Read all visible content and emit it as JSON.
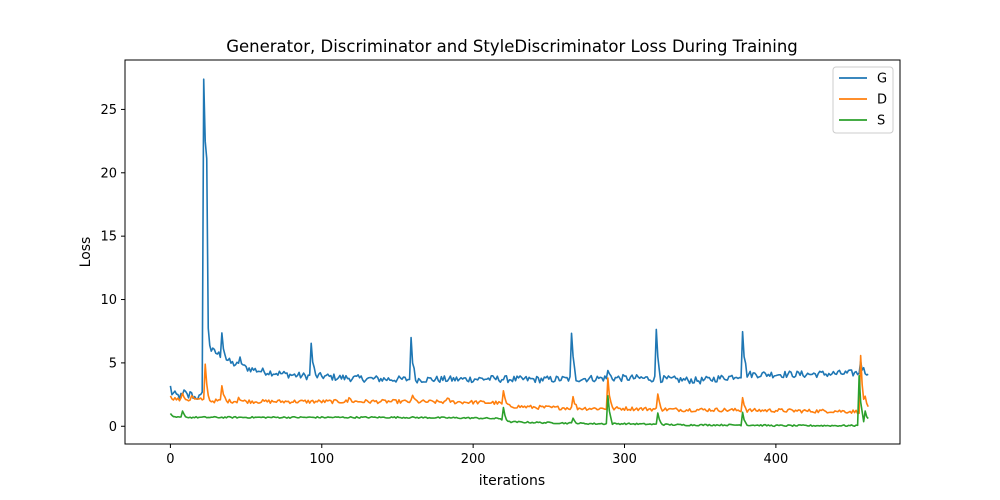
{
  "chart_data": {
    "type": "line",
    "title": "Generator, Discriminator and StyleDiscriminator Loss During Training",
    "xlabel": "iterations",
    "ylabel": "Loss",
    "xlim": [
      -30,
      482
    ],
    "ylim": [
      -1.4,
      28.9
    ],
    "xticks": [
      0,
      100,
      200,
      300,
      400
    ],
    "yticks": [
      0,
      5,
      10,
      15,
      20,
      25
    ],
    "grid": false,
    "legend_position": "top-right",
    "length": 462,
    "series": [
      {
        "name": "G",
        "color": "#1f77b4",
        "base": [
          [
            0,
            3.1
          ],
          [
            1,
            2.6
          ],
          [
            5,
            2.4
          ],
          [
            10,
            2.35
          ],
          [
            15,
            2.3
          ],
          [
            20,
            2.3
          ],
          [
            21,
            2.5
          ],
          [
            22,
            27.6
          ],
          [
            23,
            22.5
          ],
          [
            24,
            21.0
          ],
          [
            25,
            7.8
          ],
          [
            26,
            6.5
          ],
          [
            27,
            6.0
          ],
          [
            30,
            5.8
          ],
          [
            35,
            5.5
          ],
          [
            40,
            5.0
          ],
          [
            50,
            4.6
          ],
          [
            60,
            4.35
          ],
          [
            70,
            4.2
          ],
          [
            80,
            4.05
          ],
          [
            90,
            3.95
          ],
          [
            100,
            3.95
          ],
          [
            110,
            3.85
          ],
          [
            120,
            3.8
          ],
          [
            130,
            3.75
          ],
          [
            150,
            3.7
          ],
          [
            170,
            3.7
          ],
          [
            190,
            3.7
          ],
          [
            210,
            3.75
          ],
          [
            230,
            3.7
          ],
          [
            250,
            3.7
          ],
          [
            270,
            3.75
          ],
          [
            290,
            3.8
          ],
          [
            310,
            3.8
          ],
          [
            330,
            3.7
          ],
          [
            350,
            3.6
          ],
          [
            370,
            3.9
          ],
          [
            380,
            4.1
          ],
          [
            400,
            4.1
          ],
          [
            420,
            4.1
          ],
          [
            440,
            4.15
          ],
          [
            455,
            4.2
          ],
          [
            461,
            4.3
          ]
        ],
        "spikes": [
          [
            9,
            0.5
          ],
          [
            13,
            0.4
          ],
          [
            34,
            1.8
          ],
          [
            46,
            0.7
          ],
          [
            93,
            2.6
          ],
          [
            159,
            3.3
          ],
          [
            265,
            3.6
          ],
          [
            289,
            0.6
          ],
          [
            321,
            3.9
          ],
          [
            378,
            3.4
          ],
          [
            456,
            0.9
          ]
        ]
      },
      {
        "name": "D",
        "color": "#ff7f0e",
        "base": [
          [
            0,
            2.3
          ],
          [
            5,
            2.1
          ],
          [
            10,
            2.1
          ],
          [
            20,
            2.1
          ],
          [
            21,
            2.0
          ],
          [
            22,
            2.2
          ],
          [
            24,
            2.0
          ],
          [
            30,
            2.0
          ],
          [
            60,
            1.95
          ],
          [
            100,
            1.95
          ],
          [
            150,
            1.95
          ],
          [
            200,
            1.9
          ],
          [
            215,
            1.85
          ],
          [
            218,
            1.8
          ],
          [
            222,
            1.6
          ],
          [
            240,
            1.5
          ],
          [
            260,
            1.45
          ],
          [
            280,
            1.4
          ],
          [
            300,
            1.4
          ],
          [
            320,
            1.35
          ],
          [
            340,
            1.3
          ],
          [
            360,
            1.3
          ],
          [
            380,
            1.25
          ],
          [
            400,
            1.25
          ],
          [
            420,
            1.2
          ],
          [
            440,
            1.2
          ],
          [
            454,
            1.15
          ],
          [
            458,
            1.2
          ],
          [
            461,
            1.4
          ]
        ],
        "spikes": [
          [
            8,
            0.5
          ],
          [
            14,
            0.3
          ],
          [
            23,
            2.8
          ],
          [
            34,
            1.2
          ],
          [
            45,
            0.3
          ],
          [
            118,
            0.3
          ],
          [
            160,
            0.5
          ],
          [
            183,
            0.3
          ],
          [
            220,
            1.1
          ],
          [
            266,
            0.9
          ],
          [
            289,
            2.4
          ],
          [
            322,
            1.2
          ],
          [
            378,
            1.0
          ],
          [
            456,
            4.4
          ],
          [
            459,
            1.1
          ]
        ]
      },
      {
        "name": "S",
        "color": "#2ca02c",
        "base": [
          [
            0,
            0.95
          ],
          [
            2,
            0.7
          ],
          [
            10,
            0.7
          ],
          [
            30,
            0.7
          ],
          [
            60,
            0.7
          ],
          [
            100,
            0.7
          ],
          [
            150,
            0.7
          ],
          [
            200,
            0.65
          ],
          [
            218,
            0.6
          ],
          [
            222,
            0.35
          ],
          [
            240,
            0.3
          ],
          [
            260,
            0.25
          ],
          [
            280,
            0.2
          ],
          [
            300,
            0.2
          ],
          [
            320,
            0.15
          ],
          [
            340,
            0.1
          ],
          [
            360,
            0.1
          ],
          [
            380,
            0.1
          ],
          [
            400,
            0.05
          ],
          [
            420,
            0.05
          ],
          [
            440,
            0.05
          ],
          [
            453,
            0.05
          ],
          [
            458,
            0.4
          ],
          [
            461,
            0.4
          ]
        ],
        "spikes": [
          [
            8,
            0.5
          ],
          [
            220,
            1.0
          ],
          [
            266,
            0.4
          ],
          [
            289,
            2.2
          ],
          [
            322,
            0.9
          ],
          [
            378,
            1.0
          ],
          [
            455,
            3.8
          ],
          [
            459,
            0.8
          ]
        ]
      }
    ]
  }
}
